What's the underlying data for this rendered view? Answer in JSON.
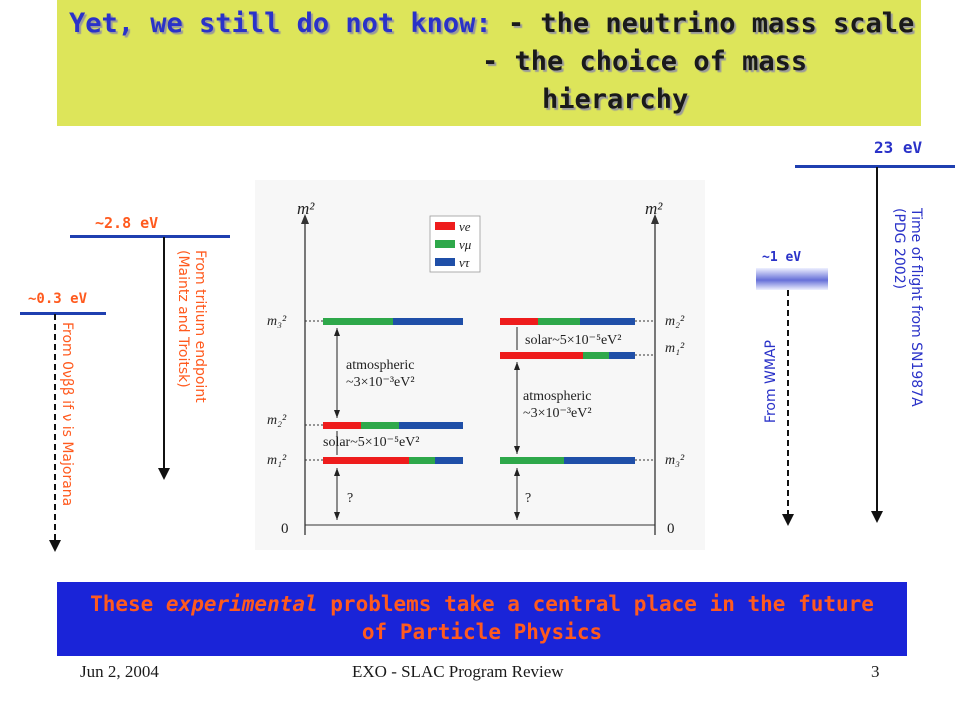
{
  "title": {
    "line1_prefix": "Yet, we still do not know:",
    "line1_suffix": " - the neutrino mass scale",
    "line2": "- the choice of mass",
    "line3": "hierarchy"
  },
  "scales": {
    "tritium": {
      "value_label": "~2.8 eV",
      "caption_line1": "From tritium endpoint",
      "caption_line2": "(Maintz and Troitsk)"
    },
    "double_beta": {
      "value_label": "~0.3 eV",
      "caption": "From 0νββ if ν is Majorana"
    },
    "wmap": {
      "value_label": "~1 eV",
      "caption": "From WMAP"
    },
    "sn1987a": {
      "value_label": "23 eV",
      "caption_line1": "Time of flight from SN1987A",
      "caption_line2": "(PDG 2002)"
    }
  },
  "diagram": {
    "axis_label": "m²",
    "zero_label": "0",
    "legend": [
      "νe",
      "νμ",
      "ντ"
    ],
    "flavor_colors": {
      "nu_e": "#ee1c1c",
      "nu_mu": "#2ea84a",
      "nu_tau": "#1f4fa8"
    },
    "normal": {
      "levels": [
        "m₃²",
        "m₂²",
        "m₁²"
      ],
      "atm_line1": "atmospheric",
      "atm_line2": "~3×10⁻³eV²",
      "solar": "solar~5×10⁻⁵eV²",
      "unknown": "?"
    },
    "inverted": {
      "levels": [
        "m₂²",
        "m₁²",
        "m₃²"
      ],
      "atm_line1": "atmospheric",
      "atm_line2": "~3×10⁻³eV²",
      "solar": "solar~5×10⁻⁵eV²",
      "unknown": "?"
    }
  },
  "footer": {
    "line1_a": "These ",
    "line1_em": "experimental",
    "line1_b": " problems take a central place in the future",
    "line2": "of Particle Physics"
  },
  "bottom": {
    "date": "Jun 2, 2004",
    "center": "EXO - SLAC Program Review",
    "page": "3"
  }
}
